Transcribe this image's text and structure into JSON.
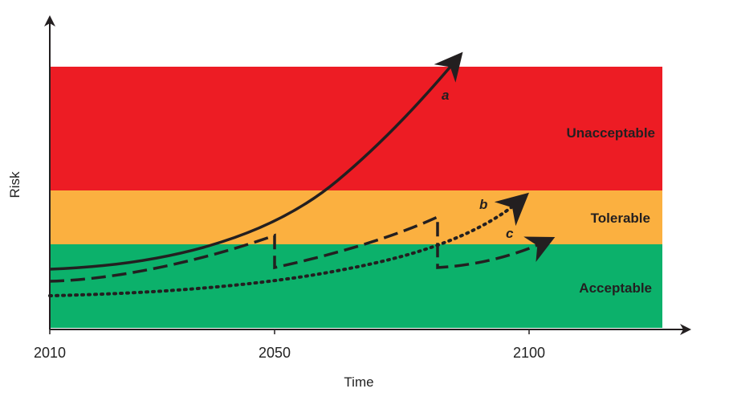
{
  "zones": {
    "unacceptable": {
      "label": "Unacceptable",
      "color": "#ed1c24"
    },
    "tolerable": {
      "label": "Tolerable",
      "color": "#fbb040"
    },
    "acceptable": {
      "label": "Acceptable",
      "color": "#0cb16b"
    }
  },
  "axes": {
    "x_title": "Time",
    "y_title": "Risk",
    "x_ticks": [
      "2010",
      "2050",
      "2100"
    ],
    "color": "#231f20"
  },
  "curves": {
    "a": {
      "label": "a",
      "style": "solid"
    },
    "b": {
      "label": "b",
      "style": "dotted"
    },
    "c": {
      "label": "c",
      "style": "dashed"
    }
  }
}
